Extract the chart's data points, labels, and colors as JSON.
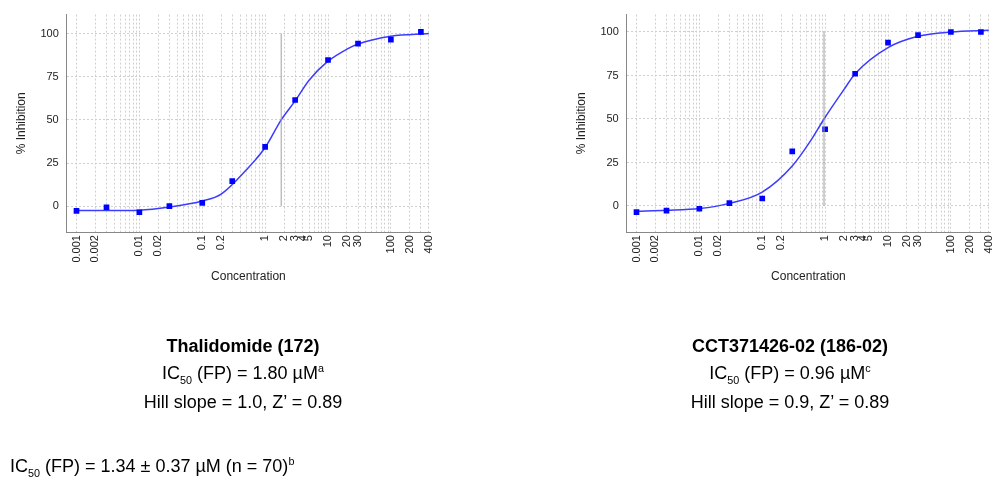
{
  "chart_data": [
    {
      "type": "scatter",
      "title": "Thalidomide (172)",
      "xlabel": "Concentration",
      "ylabel": "% Inhibition",
      "annotations": [
        "IC$_{50}$ (FP) = 1.80 µM$^{a}$",
        "Hill slope = 1.0, Z’ = 0.89",
        "IC$_{50}$ (FP) = 1.34 ± 0.37 µM (n = 70)$^{b}$"
      ],
      "series": [
        {
          "type": "scatter",
          "color": "#0000ff",
          "marker": "square",
          "x": [
            0.001,
            0.003,
            0.01,
            0.03,
            0.1,
            0.3,
            1,
            3,
            10,
            30,
            100,
            300
          ],
          "values": [
            -2.7,
            -0.6,
            -3.5,
            0,
            1.9,
            14.5,
            34.4,
            61.5,
            84.7,
            94.2,
            96.5,
            101
          ]
        },
        {
          "type": "line",
          "color": "#3c3cff",
          "marker": "none",
          "x": [
            0.001,
            0.003,
            0.01,
            0.03,
            0.1,
            0.2,
            0.5,
            1,
            1.8,
            3,
            5,
            10,
            20,
            30,
            100,
            400
          ],
          "values": [
            -2.5,
            -2.5,
            -2.3,
            -0.5,
            3,
            7,
            21,
            34,
            50,
            61,
            73,
            84,
            91,
            94,
            98.5,
            100
          ]
        }
      ],
      "xlim": [
        0.0007,
        420
      ],
      "ylim": [
        -15,
        111
      ],
      "xticks": [
        {
          "value": 0.001,
          "label": "0.001"
        },
        {
          "value": 0.002,
          "label": "0.002"
        },
        {
          "value": 0.003,
          "label": null
        },
        {
          "value": 0.004,
          "label": null
        },
        {
          "value": 0.005,
          "label": null
        },
        {
          "value": 0.006,
          "label": null
        },
        {
          "value": 0.007,
          "label": null
        },
        {
          "value": 0.008,
          "label": null
        },
        {
          "value": 0.009,
          "label": null
        },
        {
          "value": 0.01,
          "label": "0.01"
        },
        {
          "value": 0.02,
          "label": "0.02"
        },
        {
          "value": 0.03,
          "label": null
        },
        {
          "value": 0.04,
          "label": null
        },
        {
          "value": 0.05,
          "label": null
        },
        {
          "value": 0.06,
          "label": null
        },
        {
          "value": 0.07,
          "label": null
        },
        {
          "value": 0.08,
          "label": null
        },
        {
          "value": 0.09,
          "label": null
        },
        {
          "value": 0.1,
          "label": "0.1"
        },
        {
          "value": 0.2,
          "label": "0.2"
        },
        {
          "value": 0.3,
          "label": null
        },
        {
          "value": 0.4,
          "label": null
        },
        {
          "value": 0.5,
          "label": null
        },
        {
          "value": 0.6,
          "label": null
        },
        {
          "value": 0.7,
          "label": null
        },
        {
          "value": 0.8,
          "label": null
        },
        {
          "value": 0.9,
          "label": null
        },
        {
          "value": 1,
          "label": "1"
        },
        {
          "value": 2,
          "label": "2"
        },
        {
          "value": 3,
          "label": "3"
        },
        {
          "value": 4,
          "label": "4"
        },
        {
          "value": 5,
          "label": "5"
        },
        {
          "value": 6,
          "label": null
        },
        {
          "value": 7,
          "label": null
        },
        {
          "value": 8,
          "label": null
        },
        {
          "value": 9,
          "label": null
        },
        {
          "value": 10,
          "label": "10"
        },
        {
          "value": 20,
          "label": "20"
        },
        {
          "value": 30,
          "label": "30"
        },
        {
          "value": 40,
          "label": null
        },
        {
          "value": 50,
          "label": null
        },
        {
          "value": 60,
          "label": null
        },
        {
          "value": 70,
          "label": null
        },
        {
          "value": 80,
          "label": null
        },
        {
          "value": 90,
          "label": null
        },
        {
          "value": 100,
          "label": "100"
        },
        {
          "value": 200,
          "label": "200"
        },
        {
          "value": 300,
          "label": null
        },
        {
          "value": 400,
          "label": "400"
        }
      ],
      "yticks": [
        0,
        25,
        50,
        75,
        100
      ],
      "log": "x",
      "grid": true,
      "legend": false,
      "ref_lines": [
        {
          "axis": "x",
          "value": 1.8,
          "color": "#a0a0a0"
        }
      ]
    },
    {
      "type": "scatter",
      "title": "CCT371426-02 (186-02)",
      "xlabel": "Concentration",
      "ylabel": "% Inhibition",
      "annotations": [
        "IC$_{50}$ (FP) = 0.96 µM$^{c}$",
        "Hill slope = 0.9, Z’ = 0.89"
      ],
      "series": [
        {
          "type": "scatter",
          "color": "#0000ff",
          "marker": "square",
          "x": [
            0.001,
            0.003,
            0.01,
            0.03,
            0.1,
            0.3,
            1,
            3,
            10,
            30,
            100,
            300
          ],
          "values": [
            -3.5,
            -2.7,
            -1.6,
            1.6,
            4.3,
            31.4,
            44.1,
            76,
            93.9,
            98.2,
            100,
            100
          ]
        },
        {
          "type": "line",
          "color": "#3c3cff",
          "marker": "none",
          "x": [
            0.001,
            0.003,
            0.01,
            0.03,
            0.1,
            0.3,
            0.6,
            0.96,
            2,
            3,
            10,
            30,
            100,
            400
          ],
          "values": [
            -3,
            -2.5,
            -1.5,
            1.5,
            8,
            23,
            38,
            50,
            67,
            76,
            91,
            97.5,
            100,
            101
          ]
        }
      ],
      "xlim": [
        0.0007,
        420
      ],
      "ylim": [
        -15,
        110
      ],
      "xticks": [
        {
          "value": 0.001,
          "label": "0.001"
        },
        {
          "value": 0.002,
          "label": "0.002"
        },
        {
          "value": 0.003,
          "label": null
        },
        {
          "value": 0.004,
          "label": null
        },
        {
          "value": 0.005,
          "label": null
        },
        {
          "value": 0.006,
          "label": null
        },
        {
          "value": 0.007,
          "label": null
        },
        {
          "value": 0.008,
          "label": null
        },
        {
          "value": 0.009,
          "label": null
        },
        {
          "value": 0.01,
          "label": "0.01"
        },
        {
          "value": 0.02,
          "label": "0.02"
        },
        {
          "value": 0.03,
          "label": null
        },
        {
          "value": 0.04,
          "label": null
        },
        {
          "value": 0.05,
          "label": null
        },
        {
          "value": 0.06,
          "label": null
        },
        {
          "value": 0.07,
          "label": null
        },
        {
          "value": 0.08,
          "label": null
        },
        {
          "value": 0.09,
          "label": null
        },
        {
          "value": 0.1,
          "label": "0.1"
        },
        {
          "value": 0.2,
          "label": "0.2"
        },
        {
          "value": 0.3,
          "label": null
        },
        {
          "value": 0.4,
          "label": null
        },
        {
          "value": 0.5,
          "label": null
        },
        {
          "value": 0.6,
          "label": null
        },
        {
          "value": 0.7,
          "label": null
        },
        {
          "value": 0.8,
          "label": null
        },
        {
          "value": 0.9,
          "label": null
        },
        {
          "value": 1,
          "label": "1"
        },
        {
          "value": 2,
          "label": "2"
        },
        {
          "value": 3,
          "label": "3"
        },
        {
          "value": 4,
          "label": "4"
        },
        {
          "value": 5,
          "label": "5"
        },
        {
          "value": 6,
          "label": null
        },
        {
          "value": 7,
          "label": null
        },
        {
          "value": 8,
          "label": null
        },
        {
          "value": 9,
          "label": null
        },
        {
          "value": 10,
          "label": "10"
        },
        {
          "value": 20,
          "label": "20"
        },
        {
          "value": 30,
          "label": "30"
        },
        {
          "value": 40,
          "label": null
        },
        {
          "value": 50,
          "label": null
        },
        {
          "value": 60,
          "label": null
        },
        {
          "value": 70,
          "label": null
        },
        {
          "value": 80,
          "label": null
        },
        {
          "value": 90,
          "label": null
        },
        {
          "value": 100,
          "label": "100"
        },
        {
          "value": 200,
          "label": "200"
        },
        {
          "value": 300,
          "label": null
        },
        {
          "value": 400,
          "label": "400"
        }
      ],
      "yticks": [
        0,
        25,
        50,
        75,
        100
      ],
      "log": "x",
      "grid": true,
      "legend": false,
      "ref_lines": [
        {
          "axis": "x",
          "value": 0.96,
          "color": "#a0a0a0"
        }
      ]
    }
  ]
}
